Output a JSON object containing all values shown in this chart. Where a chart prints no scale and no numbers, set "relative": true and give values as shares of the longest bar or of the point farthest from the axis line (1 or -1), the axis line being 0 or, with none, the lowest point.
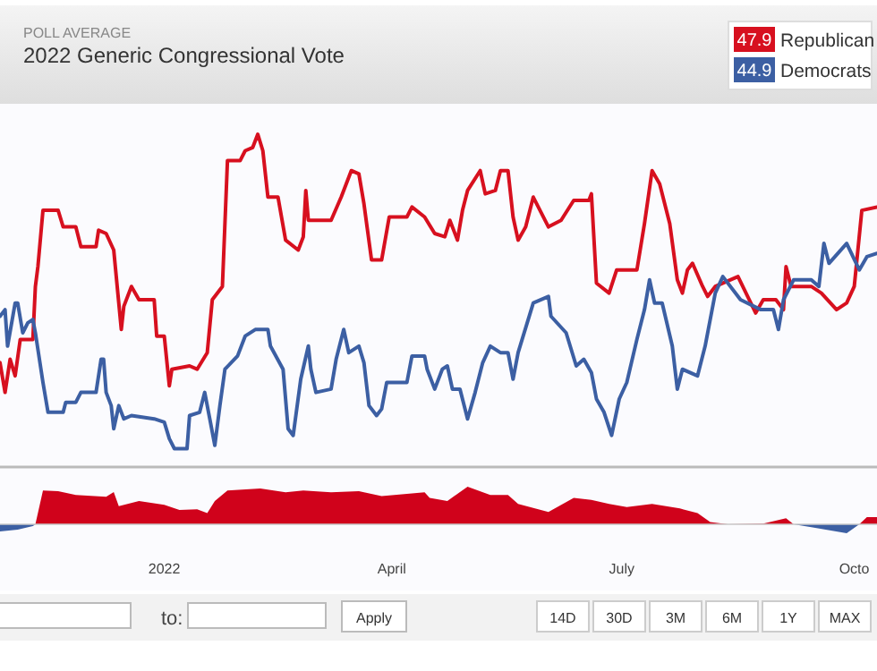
{
  "chart_data": [
    {
      "type": "line",
      "title": "2022 Generic Congressional Vote",
      "subtitle": "POLL AVERAGE",
      "relative": true,
      "legend": "top right",
      "tick_labels": false,
      "xlim": [
        "2021-10-28",
        "2022-10-10"
      ],
      "annotations": [
        "47.9",
        "44.9"
      ],
      "series": [
        {
          "name": "Republican",
          "color": "#d7101f",
          "x": [
            "2021-10-28",
            "2021-10-30",
            "2021-11-01",
            "2021-11-03",
            "2021-11-05",
            "2021-11-10",
            "2021-11-11",
            "2021-11-12",
            "2021-11-14",
            "2021-11-20",
            "2021-11-22",
            "2021-11-27",
            "2021-11-29",
            "2021-12-05",
            "2021-12-06",
            "2021-12-09",
            "2021-12-12",
            "2021-12-14",
            "2021-12-15",
            "2021-12-16",
            "2021-12-19",
            "2021-12-22",
            "2021-12-28",
            "2021-12-29",
            "2022-01-01",
            "2022-01-03",
            "2022-01-04",
            "2022-01-11",
            "2022-01-14",
            "2022-01-18",
            "2022-01-20",
            "2022-01-24",
            "2022-01-26",
            "2022-01-31",
            "2022-02-02",
            "2022-02-05",
            "2022-02-07",
            "2022-02-09",
            "2022-02-11",
            "2022-02-15",
            "2022-02-18",
            "2022-02-23",
            "2022-02-25",
            "2022-02-26",
            "2022-02-27",
            "2022-03-08",
            "2022-03-12",
            "2022-03-16",
            "2022-03-19",
            "2022-03-21",
            "2022-03-24",
            "2022-03-28",
            "2022-03-31",
            "2022-04-07",
            "2022-04-09",
            "2022-04-14",
            "2022-04-18",
            "2022-04-22",
            "2022-04-24",
            "2022-04-27",
            "2022-04-29",
            "2022-05-01",
            "2022-05-06",
            "2022-05-08",
            "2022-05-12",
            "2022-05-14",
            "2022-05-17",
            "2022-05-19",
            "2022-05-21",
            "2022-05-24",
            "2022-05-27",
            "2022-06-02",
            "2022-06-07",
            "2022-06-12",
            "2022-06-18",
            "2022-06-19",
            "2022-06-21",
            "2022-06-26",
            "2022-06-29",
            "2022-07-07",
            "2022-07-10",
            "2022-07-13",
            "2022-07-16",
            "2022-07-20",
            "2022-07-23",
            "2022-07-25",
            "2022-07-27",
            "2022-07-29",
            "2022-08-02",
            "2022-08-04",
            "2022-08-07",
            "2022-08-16",
            "2022-08-23",
            "2022-08-26",
            "2022-08-31",
            "2022-09-03",
            "2022-09-04",
            "2022-09-06",
            "2022-09-14",
            "2022-09-18",
            "2022-09-24",
            "2022-09-28",
            "2022-10-01",
            "2022-10-04",
            "2022-10-10"
          ],
          "values": [
            0.31,
            0.22,
            0.32,
            0.27,
            0.38,
            0.38,
            0.54,
            0.6,
            0.77,
            0.77,
            0.72,
            0.72,
            0.66,
            0.66,
            0.71,
            0.7,
            0.65,
            0.49,
            0.41,
            0.48,
            0.54,
            0.5,
            0.5,
            0.39,
            0.39,
            0.24,
            0.29,
            0.3,
            0.29,
            0.34,
            0.5,
            0.54,
            0.92,
            0.92,
            0.95,
            0.96,
            1,
            0.95,
            0.81,
            0.81,
            0.68,
            0.65,
            0.69,
            0.83,
            0.74,
            0.74,
            0.81,
            0.89,
            0.88,
            0.79,
            0.62,
            0.62,
            0.75,
            0.75,
            0.78,
            0.75,
            0.7,
            0.69,
            0.74,
            0.68,
            0.77,
            0.83,
            0.89,
            0.82,
            0.83,
            0.89,
            0.89,
            0.75,
            0.68,
            0.72,
            0.81,
            0.72,
            0.74,
            0.8,
            0.8,
            0.82,
            0.55,
            0.52,
            0.59,
            0.59,
            0.73,
            0.89,
            0.85,
            0.73,
            0.56,
            0.52,
            0.59,
            0.61,
            0.54,
            0.51,
            0.54,
            0.57,
            0.46,
            0.5,
            0.5,
            0.47,
            0.6,
            0.54,
            0.54,
            0.52,
            0.47,
            0.49,
            0.54,
            0.77,
            0.78
          ]
        },
        {
          "name": "Democrats",
          "color": "#3c5fa3",
          "x": [
            "2021-10-28",
            "2021-10-30",
            "2021-10-31",
            "2021-11-03",
            "2021-11-04",
            "2021-11-06",
            "2021-11-08",
            "2021-11-10",
            "2021-11-11",
            "2021-11-14",
            "2021-11-16",
            "2021-11-22",
            "2021-11-23",
            "2021-11-27",
            "2021-11-29",
            "2021-12-05",
            "2021-12-07",
            "2021-12-08",
            "2021-12-09",
            "2021-12-11",
            "2021-12-12",
            "2021-12-14",
            "2021-12-16",
            "2021-12-19",
            "2021-12-28",
            "2022-01-01",
            "2022-01-03",
            "2022-01-05",
            "2022-01-10",
            "2022-01-11",
            "2022-01-15",
            "2022-01-17",
            "2022-01-19",
            "2022-01-21",
            "2022-01-23",
            "2022-01-25",
            "2022-01-30",
            "2022-02-02",
            "2022-02-06",
            "2022-02-11",
            "2022-02-12",
            "2022-02-17",
            "2022-02-19",
            "2022-02-21",
            "2022-02-24",
            "2022-02-27",
            "2022-02-28",
            "2022-03-02",
            "2022-03-08",
            "2022-03-10",
            "2022-03-13",
            "2022-03-15",
            "2022-03-19",
            "2022-03-21",
            "2022-03-23",
            "2022-03-26",
            "2022-03-28",
            "2022-03-30",
            "2022-04-07",
            "2022-04-09",
            "2022-04-14",
            "2022-04-15",
            "2022-04-18",
            "2022-04-21",
            "2022-04-23",
            "2022-04-25",
            "2022-04-28",
            "2022-05-01",
            "2022-05-04",
            "2022-05-07",
            "2022-05-10",
            "2022-05-14",
            "2022-05-17",
            "2022-05-19",
            "2022-05-21",
            "2022-05-27",
            "2022-06-02",
            "2022-06-03",
            "2022-06-09",
            "2022-06-13",
            "2022-06-16",
            "2022-06-19",
            "2022-06-21",
            "2022-06-24",
            "2022-06-27",
            "2022-06-30",
            "2022-07-03",
            "2022-07-07",
            "2022-07-10",
            "2022-07-12",
            "2022-07-14",
            "2022-07-17",
            "2022-07-21",
            "2022-07-23",
            "2022-07-25",
            "2022-07-31",
            "2022-08-03",
            "2022-08-07",
            "2022-08-10",
            "2022-08-17",
            "2022-08-25",
            "2022-08-30",
            "2022-09-01",
            "2022-09-03",
            "2022-09-07",
            "2022-09-14",
            "2022-09-17",
            "2022-09-19",
            "2022-09-21",
            "2022-09-28",
            "2022-10-03",
            "2022-10-06",
            "2022-10-10"
          ],
          "values": [
            0.45,
            0.47,
            0.36,
            0.49,
            0.49,
            0.4,
            0.43,
            0.44,
            0.4,
            0.25,
            0.16,
            0.16,
            0.19,
            0.19,
            0.22,
            0.22,
            0.32,
            0.32,
            0.22,
            0.18,
            0.11,
            0.18,
            0.14,
            0.15,
            0.14,
            0.13,
            0.08,
            0.05,
            0.05,
            0.15,
            0.16,
            0.22,
            0.14,
            0.06,
            0.18,
            0.29,
            0.33,
            0.39,
            0.41,
            0.41,
            0.36,
            0.29,
            0.11,
            0.09,
            0.26,
            0.36,
            0.29,
            0.22,
            0.23,
            0.32,
            0.41,
            0.34,
            0.36,
            0.31,
            0.18,
            0.15,
            0.17,
            0.25,
            0.25,
            0.33,
            0.33,
            0.29,
            0.23,
            0.29,
            0.3,
            0.23,
            0.23,
            0.14,
            0.22,
            0.31,
            0.36,
            0.34,
            0.34,
            0.26,
            0.34,
            0.49,
            0.51,
            0.45,
            0.4,
            0.3,
            0.32,
            0.28,
            0.2,
            0.16,
            0.09,
            0.2,
            0.25,
            0.38,
            0.47,
            0.56,
            0.49,
            0.49,
            0.36,
            0.23,
            0.29,
            0.27,
            0.36,
            0.52,
            0.57,
            0.5,
            0.47,
            0.47,
            0.41,
            0.5,
            0.56,
            0.56,
            0.54,
            0.67,
            0.61,
            0.67,
            0.59,
            0.63,
            0.64
          ]
        }
      ]
    },
    {
      "type": "area",
      "relative": true,
      "tick_labels": "x",
      "xlim": [
        "2021-10-28",
        "2022-10-10"
      ],
      "xticks": [
        {
          "value": "2022-01-01",
          "label": "2022"
        },
        {
          "value": "2022-04-01",
          "label": "April"
        },
        {
          "value": "2022-07-01",
          "label": "July"
        },
        {
          "value": "2022-10-01",
          "label": "Octo"
        }
      ],
      "series": [
        {
          "color": "#d0021b",
          "x": [
            "2021-11-11",
            "2021-11-14",
            "2021-11-20",
            "2021-11-27",
            "2021-12-09",
            "2021-12-12",
            "2021-12-14",
            "2021-12-22",
            "2022-01-01",
            "2022-01-07",
            "2022-01-14",
            "2022-01-18",
            "2022-01-21",
            "2022-01-26",
            "2022-02-08",
            "2022-02-18",
            "2022-02-25",
            "2022-03-08",
            "2022-03-19",
            "2022-03-28",
            "2022-04-14",
            "2022-04-16",
            "2022-04-23",
            "2022-05-01",
            "2022-05-10",
            "2022-05-17",
            "2022-05-21",
            "2022-06-02",
            "2022-06-12",
            "2022-06-19",
            "2022-06-26",
            "2022-07-03",
            "2022-07-13",
            "2022-07-24",
            "2022-07-31",
            "2022-08-05",
            "2022-08-12",
            "2022-08-26",
            "2022-09-04",
            "2022-09-07",
            "2022-09-20",
            "2022-10-03",
            "2022-10-06",
            "2022-10-10"
          ],
          "values": [
            0,
            0.9,
            0.88,
            0.78,
            0.73,
            0.86,
            0.48,
            0.62,
            0.52,
            0.38,
            0.4,
            0.3,
            0.62,
            0.9,
            0.95,
            0.85,
            0.9,
            0.85,
            0.88,
            0.75,
            0.85,
            0.7,
            0.62,
            1,
            0.78,
            0.78,
            0.54,
            0.33,
            0.7,
            0.65,
            0.54,
            0.46,
            0.54,
            0.42,
            0.3,
            0.06,
            0,
            0.02,
            0.16,
            0,
            null,
            0,
            0.19,
            0.19
          ]
        },
        {
          "color": "#3c5fa3",
          "x": [
            "2021-10-28",
            "2021-11-04",
            "2021-11-10",
            "2021-11-11",
            "2022-03-01",
            "2022-09-07",
            "2022-09-14",
            "2022-09-28",
            "2022-10-03"
          ],
          "values": [
            -0.19,
            -0.14,
            -0.05,
            0,
            null,
            0,
            -0.08,
            -0.24,
            0
          ]
        }
      ]
    },
    {
      "type": "other",
      "annotations": [
        "to:",
        "Apply",
        "14D",
        "30D",
        "3M",
        "6M",
        "1Y",
        "MAX"
      ]
    }
  ]
}
